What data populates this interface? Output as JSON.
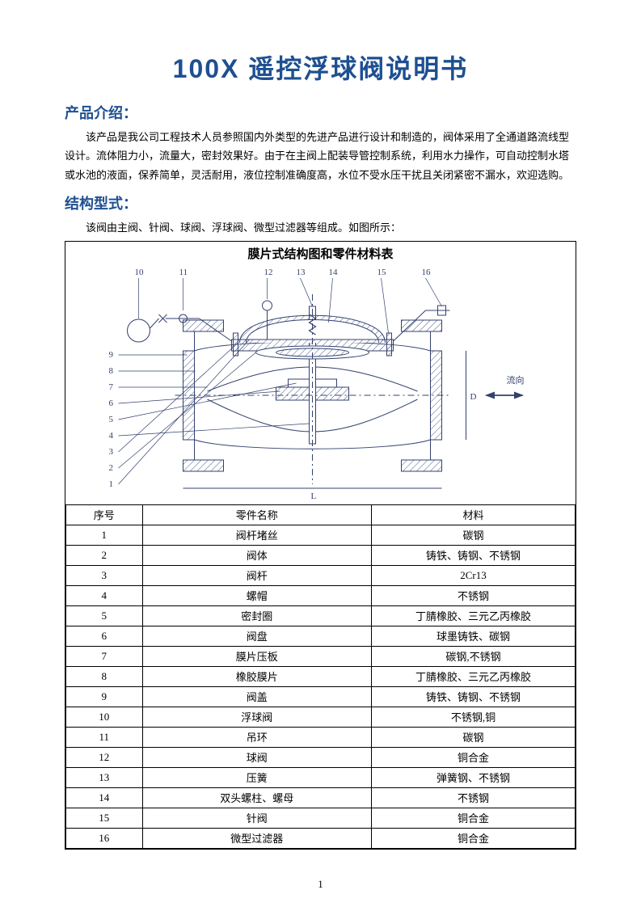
{
  "title": "100X 遥控浮球阀说明书",
  "page_number": "1",
  "sections": {
    "intro": {
      "heading": "产品介绍：",
      "text": "该产品是我公司工程技术人员参照国内外类型的先进产品进行设计和制造的，阀体采用了全通道路流线型设计。流体阻力小，流量大，密封效果好。由于在主阀上配装导管控制系统，利用水力操作，可自动控制水塔或水池的液面，保养简单，灵活耐用，液位控制准确度高，水位不受水压干扰且关闭紧密不漏水，欢迎选购。"
    },
    "structure": {
      "heading": "结构型式：",
      "text": "该阀由主阀、针阀、球阀、浮球阀、微型过滤器等组成。如图所示："
    }
  },
  "diagram": {
    "title": "膜片式结构图和零件材料表",
    "flow_label": "流向",
    "callout_labels": [
      "1",
      "2",
      "3",
      "4",
      "5",
      "6",
      "7",
      "8",
      "9",
      "10",
      "11",
      "12",
      "13",
      "14",
      "15",
      "16"
    ],
    "colors": {
      "stroke": "#33416e",
      "hatch": "#4a5a8a"
    }
  },
  "table": {
    "headers": {
      "seq": "序号",
      "name": "零件名称",
      "material": "材料"
    },
    "rows": [
      {
        "seq": "1",
        "name": "阀杆堵丝",
        "material": "碳钢"
      },
      {
        "seq": "2",
        "name": "阀体",
        "material": "铸铁、铸钢、不锈钢"
      },
      {
        "seq": "3",
        "name": "阀杆",
        "material": "2Cr13"
      },
      {
        "seq": "4",
        "name": "螺帽",
        "material": "不锈钢"
      },
      {
        "seq": "5",
        "name": "密封圈",
        "material": "丁腈橡胶、三元乙丙橡胶"
      },
      {
        "seq": "6",
        "name": "阀盘",
        "material": "球墨铸铁、碳钢"
      },
      {
        "seq": "7",
        "name": "膜片压板",
        "material": "碳钢,不锈钢"
      },
      {
        "seq": "8",
        "name": "橡胶膜片",
        "material": "丁腈橡胶、三元乙丙橡胶"
      },
      {
        "seq": "9",
        "name": "阀盖",
        "material": "铸铁、铸钢、不锈钢"
      },
      {
        "seq": "10",
        "name": "浮球阀",
        "material": "不锈钢,铜"
      },
      {
        "seq": "11",
        "name": "吊环",
        "material": "碳钢"
      },
      {
        "seq": "12",
        "name": "球阀",
        "material": "铜合金"
      },
      {
        "seq": "13",
        "name": "压簧",
        "material": "弹簧钢、不锈钢"
      },
      {
        "seq": "14",
        "name": "双头螺柱、螺母",
        "material": "不锈钢"
      },
      {
        "seq": "15",
        "name": "针阀",
        "material": "铜合金"
      },
      {
        "seq": "16",
        "name": "微型过滤器",
        "material": "铜合金"
      }
    ]
  },
  "colors": {
    "heading": "#1e5091",
    "text": "#000000",
    "border": "#000000"
  }
}
